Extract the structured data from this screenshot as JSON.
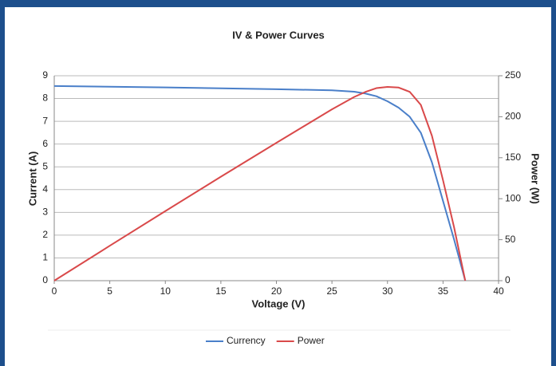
{
  "chart_data": {
    "type": "line",
    "title": "IV & Power Curves",
    "xlabel": "Voltage (V)",
    "ylabel": "Current (A)",
    "y2label": "Power (W)",
    "x": [
      0,
      5,
      10,
      15,
      20,
      25,
      27,
      28,
      29,
      30,
      31,
      32,
      33,
      34,
      35,
      36,
      37
    ],
    "series": [
      {
        "name": "Currency",
        "color": "#4a7fc9",
        "values": [
          8.55,
          8.52,
          8.49,
          8.45,
          8.41,
          8.36,
          8.3,
          8.22,
          8.1,
          7.88,
          7.6,
          7.2,
          6.5,
          5.2,
          3.5,
          1.8,
          0
        ]
      },
      {
        "name": "Power",
        "color": "#d9494a",
        "axis": "y2",
        "values": [
          0,
          42.6,
          84.9,
          126.8,
          168.2,
          209,
          224.1,
          230.2,
          234.9,
          236.4,
          235.6,
          230.4,
          214.5,
          176.8,
          122.5,
          64.8,
          0
        ]
      }
    ],
    "xlim": [
      0,
      40
    ],
    "xticks": [
      0,
      5,
      10,
      15,
      20,
      25,
      30,
      35,
      40
    ],
    "ylim": [
      0,
      9
    ],
    "yticks": [
      0,
      1,
      2,
      3,
      4,
      5,
      6,
      7,
      8,
      9
    ],
    "y2lim": [
      0,
      250
    ],
    "y2ticks": [
      0,
      50,
      100,
      150,
      200,
      250
    ],
    "grid": true,
    "legend": "bottom"
  }
}
